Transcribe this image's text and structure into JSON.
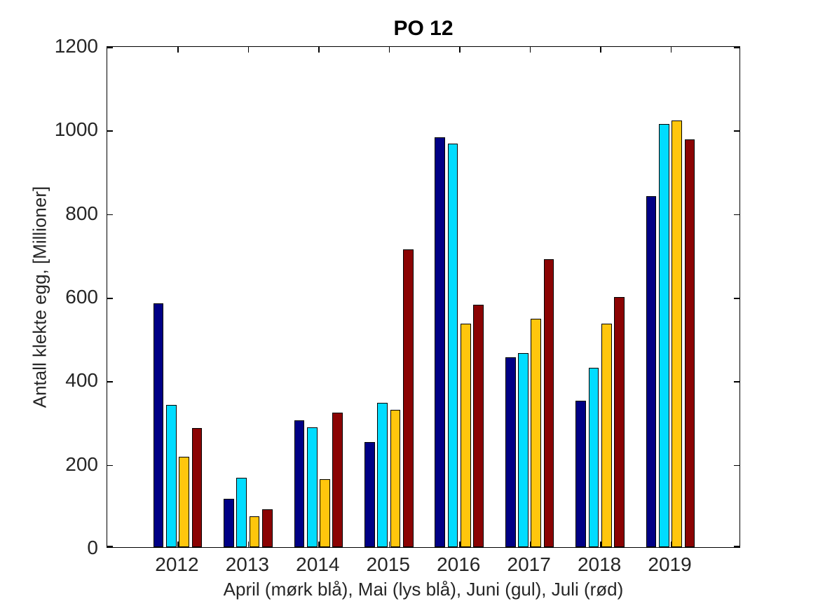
{
  "figure": {
    "title": "PO 12",
    "xlabel": "April (mørk blå), Mai (lys blå), Juni (gul), Juli (rød)",
    "ylabel": "Antall klekte egg, [Millioner]"
  },
  "chart_data": {
    "type": "bar",
    "title": "PO 12",
    "xlabel": "April (mørk blå), Mai (lys blå), Juni (gul), Juli (rød)",
    "ylabel": "Antall klekte egg, [Millioner]",
    "categories": [
      "2012",
      "2013",
      "2014",
      "2015",
      "2016",
      "2017",
      "2018",
      "2019"
    ],
    "series": [
      {
        "name": "April (mørk blå)",
        "color": "#000085",
        "values": [
          583,
          115,
          304,
          251,
          980,
          455,
          350,
          840
        ]
      },
      {
        "name": "Mai (lys blå)",
        "color": "#00DCFF",
        "values": [
          340,
          166,
          287,
          346,
          966,
          464,
          429,
          1012
        ]
      },
      {
        "name": "Juni (gul)",
        "color": "#FFC60D",
        "values": [
          216,
          73,
          163,
          329,
          534,
          547,
          535,
          1020
        ]
      },
      {
        "name": "Juli (rød)",
        "color": "#8B0303",
        "values": [
          285,
          90,
          322,
          713,
          580,
          689,
          598,
          975
        ]
      }
    ],
    "ylim": [
      0,
      1200
    ],
    "yticks": [
      0,
      200,
      400,
      600,
      800,
      1000,
      1200
    ],
    "grid": false,
    "legend_position": "none (series described in xlabel text)",
    "bar_edge_color": "#000000",
    "box": "on",
    "tick_direction": "in"
  }
}
